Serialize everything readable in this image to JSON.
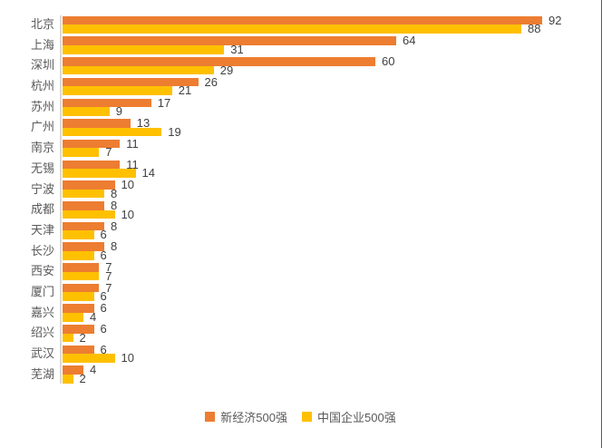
{
  "chart_data": {
    "type": "bar",
    "orientation": "horizontal",
    "title": "",
    "xlabel": "",
    "ylabel": "",
    "xlim": [
      0,
      92
    ],
    "grid": false,
    "data_labels": "outside-end",
    "legend_position": "bottom-center",
    "categories": [
      "北京",
      "上海",
      "深圳",
      "杭州",
      "苏州",
      "广州",
      "南京",
      "无锡",
      "宁波",
      "成都",
      "天津",
      "长沙",
      "西安",
      "厦门",
      "嘉兴",
      "绍兴",
      "武汉",
      "芜湖"
    ],
    "series": [
      {
        "name": "新经济500强",
        "color": "#ED7D31",
        "values": [
          92,
          64,
          60,
          26,
          17,
          13,
          11,
          11,
          10,
          8,
          8,
          8,
          7,
          7,
          6,
          6,
          6,
          4
        ]
      },
      {
        "name": "中国企业500强",
        "color": "#FFC000",
        "values": [
          88,
          31,
          29,
          21,
          9,
          19,
          7,
          14,
          8,
          10,
          6,
          6,
          7,
          6,
          4,
          2,
          10,
          2
        ]
      }
    ],
    "colors": {
      "axis_line": "#D9D9D9",
      "value_label": "#404040",
      "category_label": "#595959",
      "background": "#ffffff",
      "window_edge": "#51604f"
    }
  }
}
